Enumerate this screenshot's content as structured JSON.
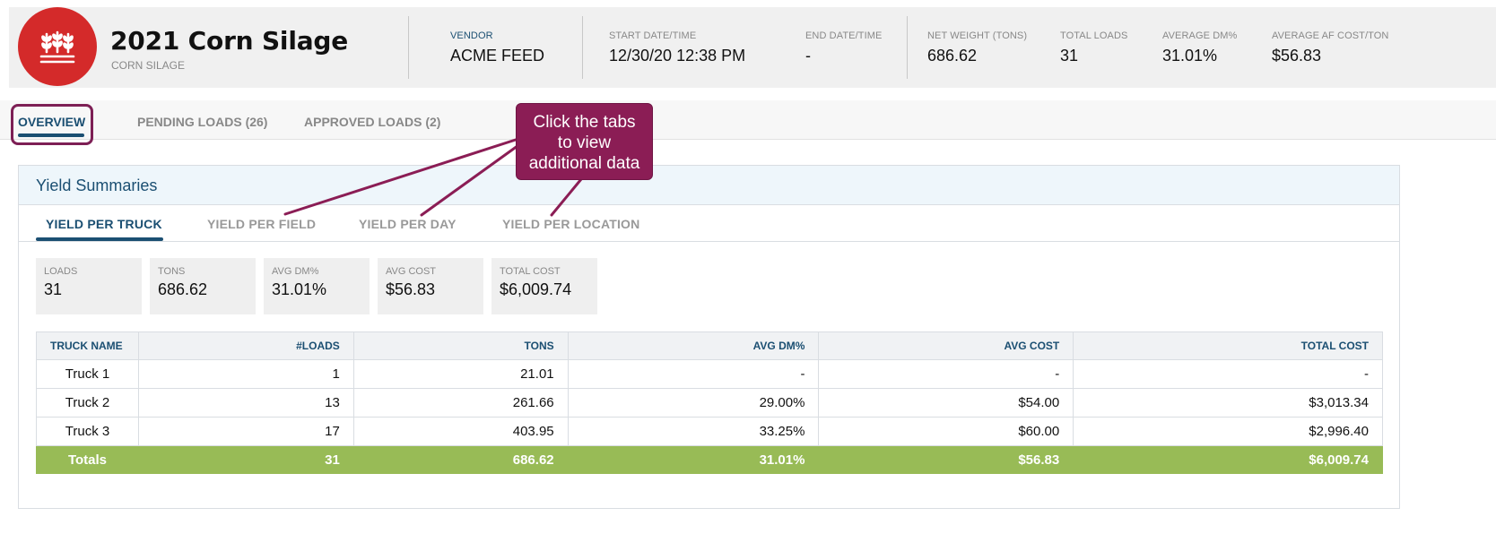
{
  "header": {
    "title": "2021 Corn Silage",
    "subtitle": "CORN SILAGE",
    "logo_icon": "wheat-icon",
    "stats": {
      "vendor": {
        "label": "VENDOR",
        "value": "ACME FEED"
      },
      "start": {
        "label": "START DATE/TIME",
        "value": "12/30/20 12:38 PM"
      },
      "end": {
        "label": "END DATE/TIME",
        "value": "-"
      },
      "net_weight": {
        "label": "NET WEIGHT (TONS)",
        "value": "686.62"
      },
      "total_loads": {
        "label": "TOTAL LOADS",
        "value": "31"
      },
      "avg_dm": {
        "label": "AVERAGE DM%",
        "value": "31.01%"
      },
      "avg_cost": {
        "label": "AVERAGE AF COST/TON",
        "value": "$56.83"
      }
    }
  },
  "tabs": [
    {
      "label": "OVERVIEW"
    },
    {
      "label": "PENDING LOADS (26)"
    },
    {
      "label": "APPROVED LOADS (2)"
    }
  ],
  "callout": {
    "lines": [
      "Click the tabs",
      "to view",
      "additional data"
    ]
  },
  "card": {
    "title": "Yield Summaries",
    "subtabs": [
      {
        "label": "YIELD PER TRUCK"
      },
      {
        "label": "YIELD PER FIELD"
      },
      {
        "label": "YIELD PER DAY"
      },
      {
        "label": "YIELD PER LOCATION"
      }
    ],
    "summary": [
      {
        "label": "LOADS",
        "value": "31"
      },
      {
        "label": "TONS",
        "value": "686.62"
      },
      {
        "label": "AVG DM%",
        "value": "31.01%"
      },
      {
        "label": "AVG COST",
        "value": "$56.83"
      },
      {
        "label": "TOTAL COST",
        "value": "$6,009.74"
      }
    ],
    "table": {
      "columns": [
        "TRUCK NAME",
        "#LOADS",
        "TONS",
        "AVG DM%",
        "AVG COST",
        "TOTAL COST"
      ],
      "rows": [
        [
          "Truck 1",
          "1",
          "21.01",
          "-",
          "-",
          "-"
        ],
        [
          "Truck 2",
          "13",
          "261.66",
          "29.00%",
          "$54.00",
          "$3,013.34"
        ],
        [
          "Truck 3",
          "17",
          "403.95",
          "33.25%",
          "$60.00",
          "$2,996.40"
        ]
      ],
      "totals": [
        "Totals",
        "31",
        "686.62",
        "31.01%",
        "$56.83",
        "$6,009.74"
      ]
    }
  },
  "colors": {
    "brand_red": "#d42a2a",
    "accent_blue": "#1b4f72",
    "callout": "#8b1d55",
    "totals_green": "#98bb56"
  }
}
